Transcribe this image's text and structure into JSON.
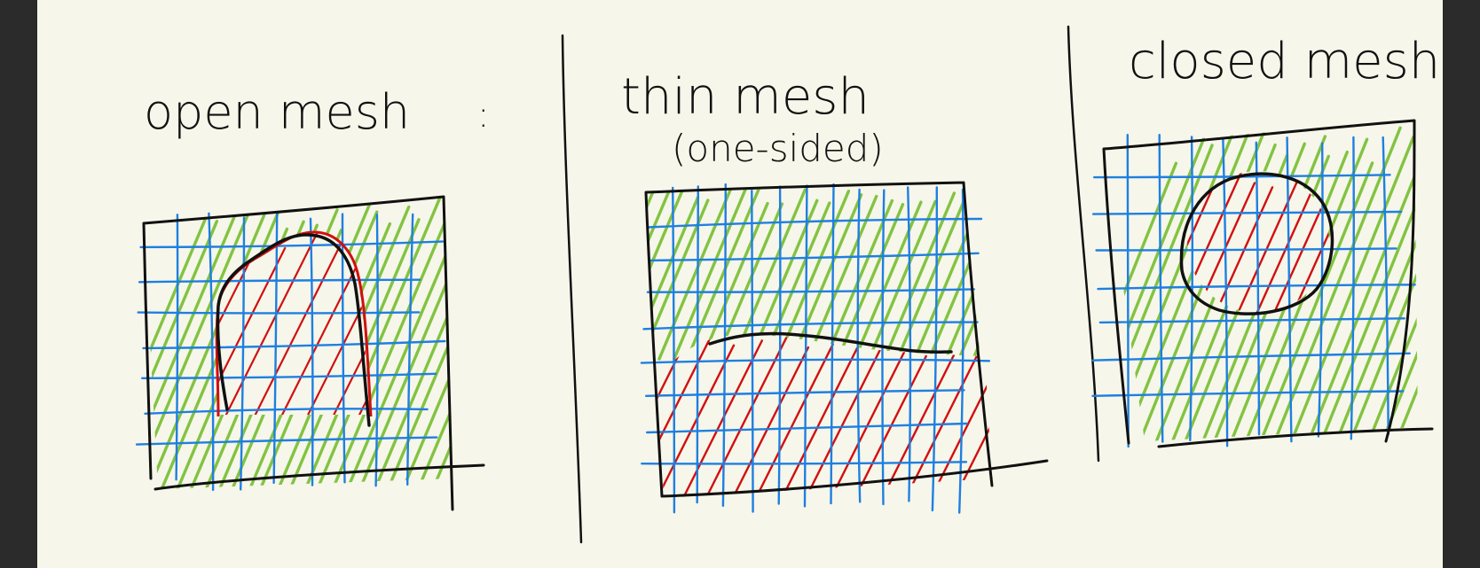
{
  "colors": {
    "background_dark": "#2b2b2b",
    "paper": "#f6f6ea",
    "ink": "#111111",
    "grid_blue": "#1f7fe0",
    "hatch_green": "#82c341",
    "hatch_red": "#d10f0f"
  },
  "panels": [
    {
      "id": "open",
      "title": "open mesh",
      "title_suffix": ":",
      "subtitle": ""
    },
    {
      "id": "thin",
      "title": "thin mesh",
      "subtitle": "(one-sided)"
    },
    {
      "id": "closed",
      "title": "closed mesh",
      "subtitle": ""
    }
  ]
}
